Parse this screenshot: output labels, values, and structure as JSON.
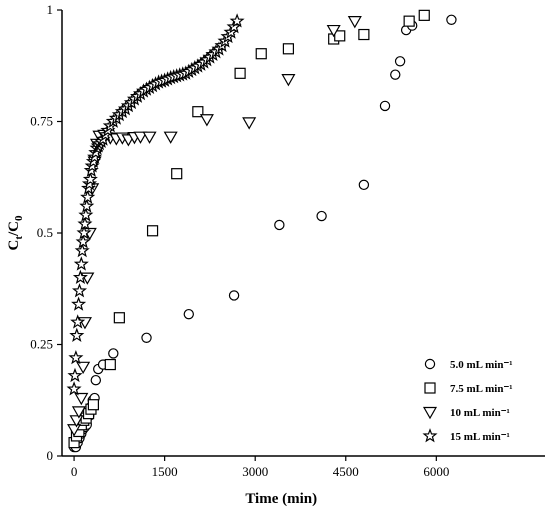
{
  "chart_data": {
    "type": "scatter",
    "xlabel": "Time (min)",
    "ylabel": "C",
    "ylabel_sub": "t",
    "ylabel_tail": "/C",
    "ylabel_sub2": "0",
    "xlim": [
      -200,
      7800
    ],
    "ylim": [
      0,
      1
    ],
    "xticks": [
      0,
      1500,
      3000,
      4500,
      6000
    ],
    "xtick_labels": [
      "0",
      "1500",
      "3000",
      "4500",
      "6000"
    ],
    "yticks": [
      0,
      0.25,
      0.5,
      0.75,
      1
    ],
    "ytick_labels": [
      "0",
      "0.25",
      "0.5",
      "0.75",
      "1"
    ],
    "grid": false,
    "legend_position": "bottom-right",
    "series": [
      {
        "name": "5.0 mL min⁻¹",
        "marker": "circle",
        "points": [
          [
            0,
            0.02
          ],
          [
            30,
            0.02
          ],
          [
            60,
            0.03
          ],
          [
            90,
            0.04
          ],
          [
            120,
            0.05
          ],
          [
            150,
            0.06
          ],
          [
            180,
            0.065
          ],
          [
            210,
            0.07
          ],
          [
            250,
            0.09
          ],
          [
            280,
            0.11
          ],
          [
            310,
            0.125
          ],
          [
            340,
            0.13
          ],
          [
            360,
            0.17
          ],
          [
            400,
            0.195
          ],
          [
            480,
            0.205
          ],
          [
            650,
            0.23
          ],
          [
            1200,
            0.265
          ],
          [
            1900,
            0.318
          ],
          [
            2650,
            0.36
          ],
          [
            3400,
            0.518
          ],
          [
            4100,
            0.538
          ],
          [
            4800,
            0.608
          ],
          [
            5150,
            0.785
          ],
          [
            5320,
            0.855
          ],
          [
            5400,
            0.885
          ],
          [
            5500,
            0.955
          ],
          [
            5600,
            0.965
          ],
          [
            6250,
            0.978
          ]
        ]
      },
      {
        "name": "7.5 mL min⁻¹",
        "marker": "square",
        "points": [
          [
            0,
            0.03
          ],
          [
            40,
            0.045
          ],
          [
            80,
            0.055
          ],
          [
            120,
            0.07
          ],
          [
            160,
            0.08
          ],
          [
            200,
            0.085
          ],
          [
            240,
            0.095
          ],
          [
            280,
            0.105
          ],
          [
            320,
            0.115
          ],
          [
            600,
            0.205
          ],
          [
            750,
            0.31
          ],
          [
            1300,
            0.505
          ],
          [
            1700,
            0.633
          ],
          [
            2050,
            0.772
          ],
          [
            2750,
            0.858
          ],
          [
            3100,
            0.902
          ],
          [
            3550,
            0.913
          ],
          [
            4300,
            0.935
          ],
          [
            4400,
            0.942
          ],
          [
            4800,
            0.945
          ],
          [
            5550,
            0.975
          ],
          [
            5800,
            0.988
          ]
        ]
      },
      {
        "name": "10 mL min⁻¹",
        "marker": "triangle",
        "points": [
          [
            0,
            0.06
          ],
          [
            40,
            0.08
          ],
          [
            80,
            0.1
          ],
          [
            120,
            0.13
          ],
          [
            150,
            0.2
          ],
          [
            180,
            0.3
          ],
          [
            220,
            0.4
          ],
          [
            260,
            0.5
          ],
          [
            300,
            0.6
          ],
          [
            340,
            0.66
          ],
          [
            380,
            0.7
          ],
          [
            420,
            0.718
          ],
          [
            500,
            0.72
          ],
          [
            600,
            0.714
          ],
          [
            700,
            0.712
          ],
          [
            800,
            0.714
          ],
          [
            900,
            0.71
          ],
          [
            1000,
            0.715
          ],
          [
            1100,
            0.716
          ],
          [
            1250,
            0.716
          ],
          [
            1600,
            0.716
          ],
          [
            2200,
            0.755
          ],
          [
            2900,
            0.748
          ],
          [
            3550,
            0.845
          ],
          [
            4300,
            0.955
          ],
          [
            4650,
            0.975
          ]
        ]
      },
      {
        "name": "15 mL min⁻¹",
        "marker": "star",
        "points": [
          [
            0,
            0.15
          ],
          [
            15,
            0.18
          ],
          [
            30,
            0.22
          ],
          [
            45,
            0.27
          ],
          [
            60,
            0.3
          ],
          [
            75,
            0.34
          ],
          [
            90,
            0.37
          ],
          [
            105,
            0.4
          ],
          [
            120,
            0.43
          ],
          [
            135,
            0.46
          ],
          [
            150,
            0.48
          ],
          [
            165,
            0.5
          ],
          [
            180,
            0.52
          ],
          [
            195,
            0.54
          ],
          [
            210,
            0.56
          ],
          [
            225,
            0.58
          ],
          [
            240,
            0.6
          ],
          [
            255,
            0.61
          ],
          [
            270,
            0.62
          ],
          [
            285,
            0.64
          ],
          [
            300,
            0.65
          ],
          [
            320,
            0.66
          ],
          [
            340,
            0.67
          ],
          [
            360,
            0.68
          ],
          [
            380,
            0.69
          ],
          [
            400,
            0.695
          ],
          [
            420,
            0.7
          ],
          [
            450,
            0.705
          ],
          [
            480,
            0.71
          ],
          [
            520,
            0.72
          ],
          [
            560,
            0.73
          ],
          [
            600,
            0.74
          ],
          [
            650,
            0.75
          ],
          [
            700,
            0.757
          ],
          [
            750,
            0.765
          ],
          [
            800,
            0.772
          ],
          [
            850,
            0.778
          ],
          [
            900,
            0.785
          ],
          [
            950,
            0.792
          ],
          [
            1000,
            0.8
          ],
          [
            1050,
            0.806
          ],
          [
            1100,
            0.812
          ],
          [
            1150,
            0.818
          ],
          [
            1200,
            0.822
          ],
          [
            1250,
            0.826
          ],
          [
            1300,
            0.83
          ],
          [
            1350,
            0.834
          ],
          [
            1400,
            0.838
          ],
          [
            1450,
            0.84
          ],
          [
            1500,
            0.842
          ],
          [
            1550,
            0.845
          ],
          [
            1600,
            0.848
          ],
          [
            1650,
            0.85
          ],
          [
            1700,
            0.852
          ],
          [
            1750,
            0.854
          ],
          [
            1800,
            0.856
          ],
          [
            1850,
            0.858
          ],
          [
            1900,
            0.862
          ],
          [
            1950,
            0.866
          ],
          [
            2000,
            0.87
          ],
          [
            2050,
            0.874
          ],
          [
            2100,
            0.878
          ],
          [
            2150,
            0.883
          ],
          [
            2200,
            0.888
          ],
          [
            2250,
            0.894
          ],
          [
            2300,
            0.9
          ],
          [
            2350,
            0.906
          ],
          [
            2400,
            0.912
          ],
          [
            2450,
            0.92
          ],
          [
            2500,
            0.93
          ],
          [
            2550,
            0.94
          ],
          [
            2600,
            0.95
          ],
          [
            2650,
            0.962
          ],
          [
            2700,
            0.975
          ]
        ]
      }
    ]
  }
}
